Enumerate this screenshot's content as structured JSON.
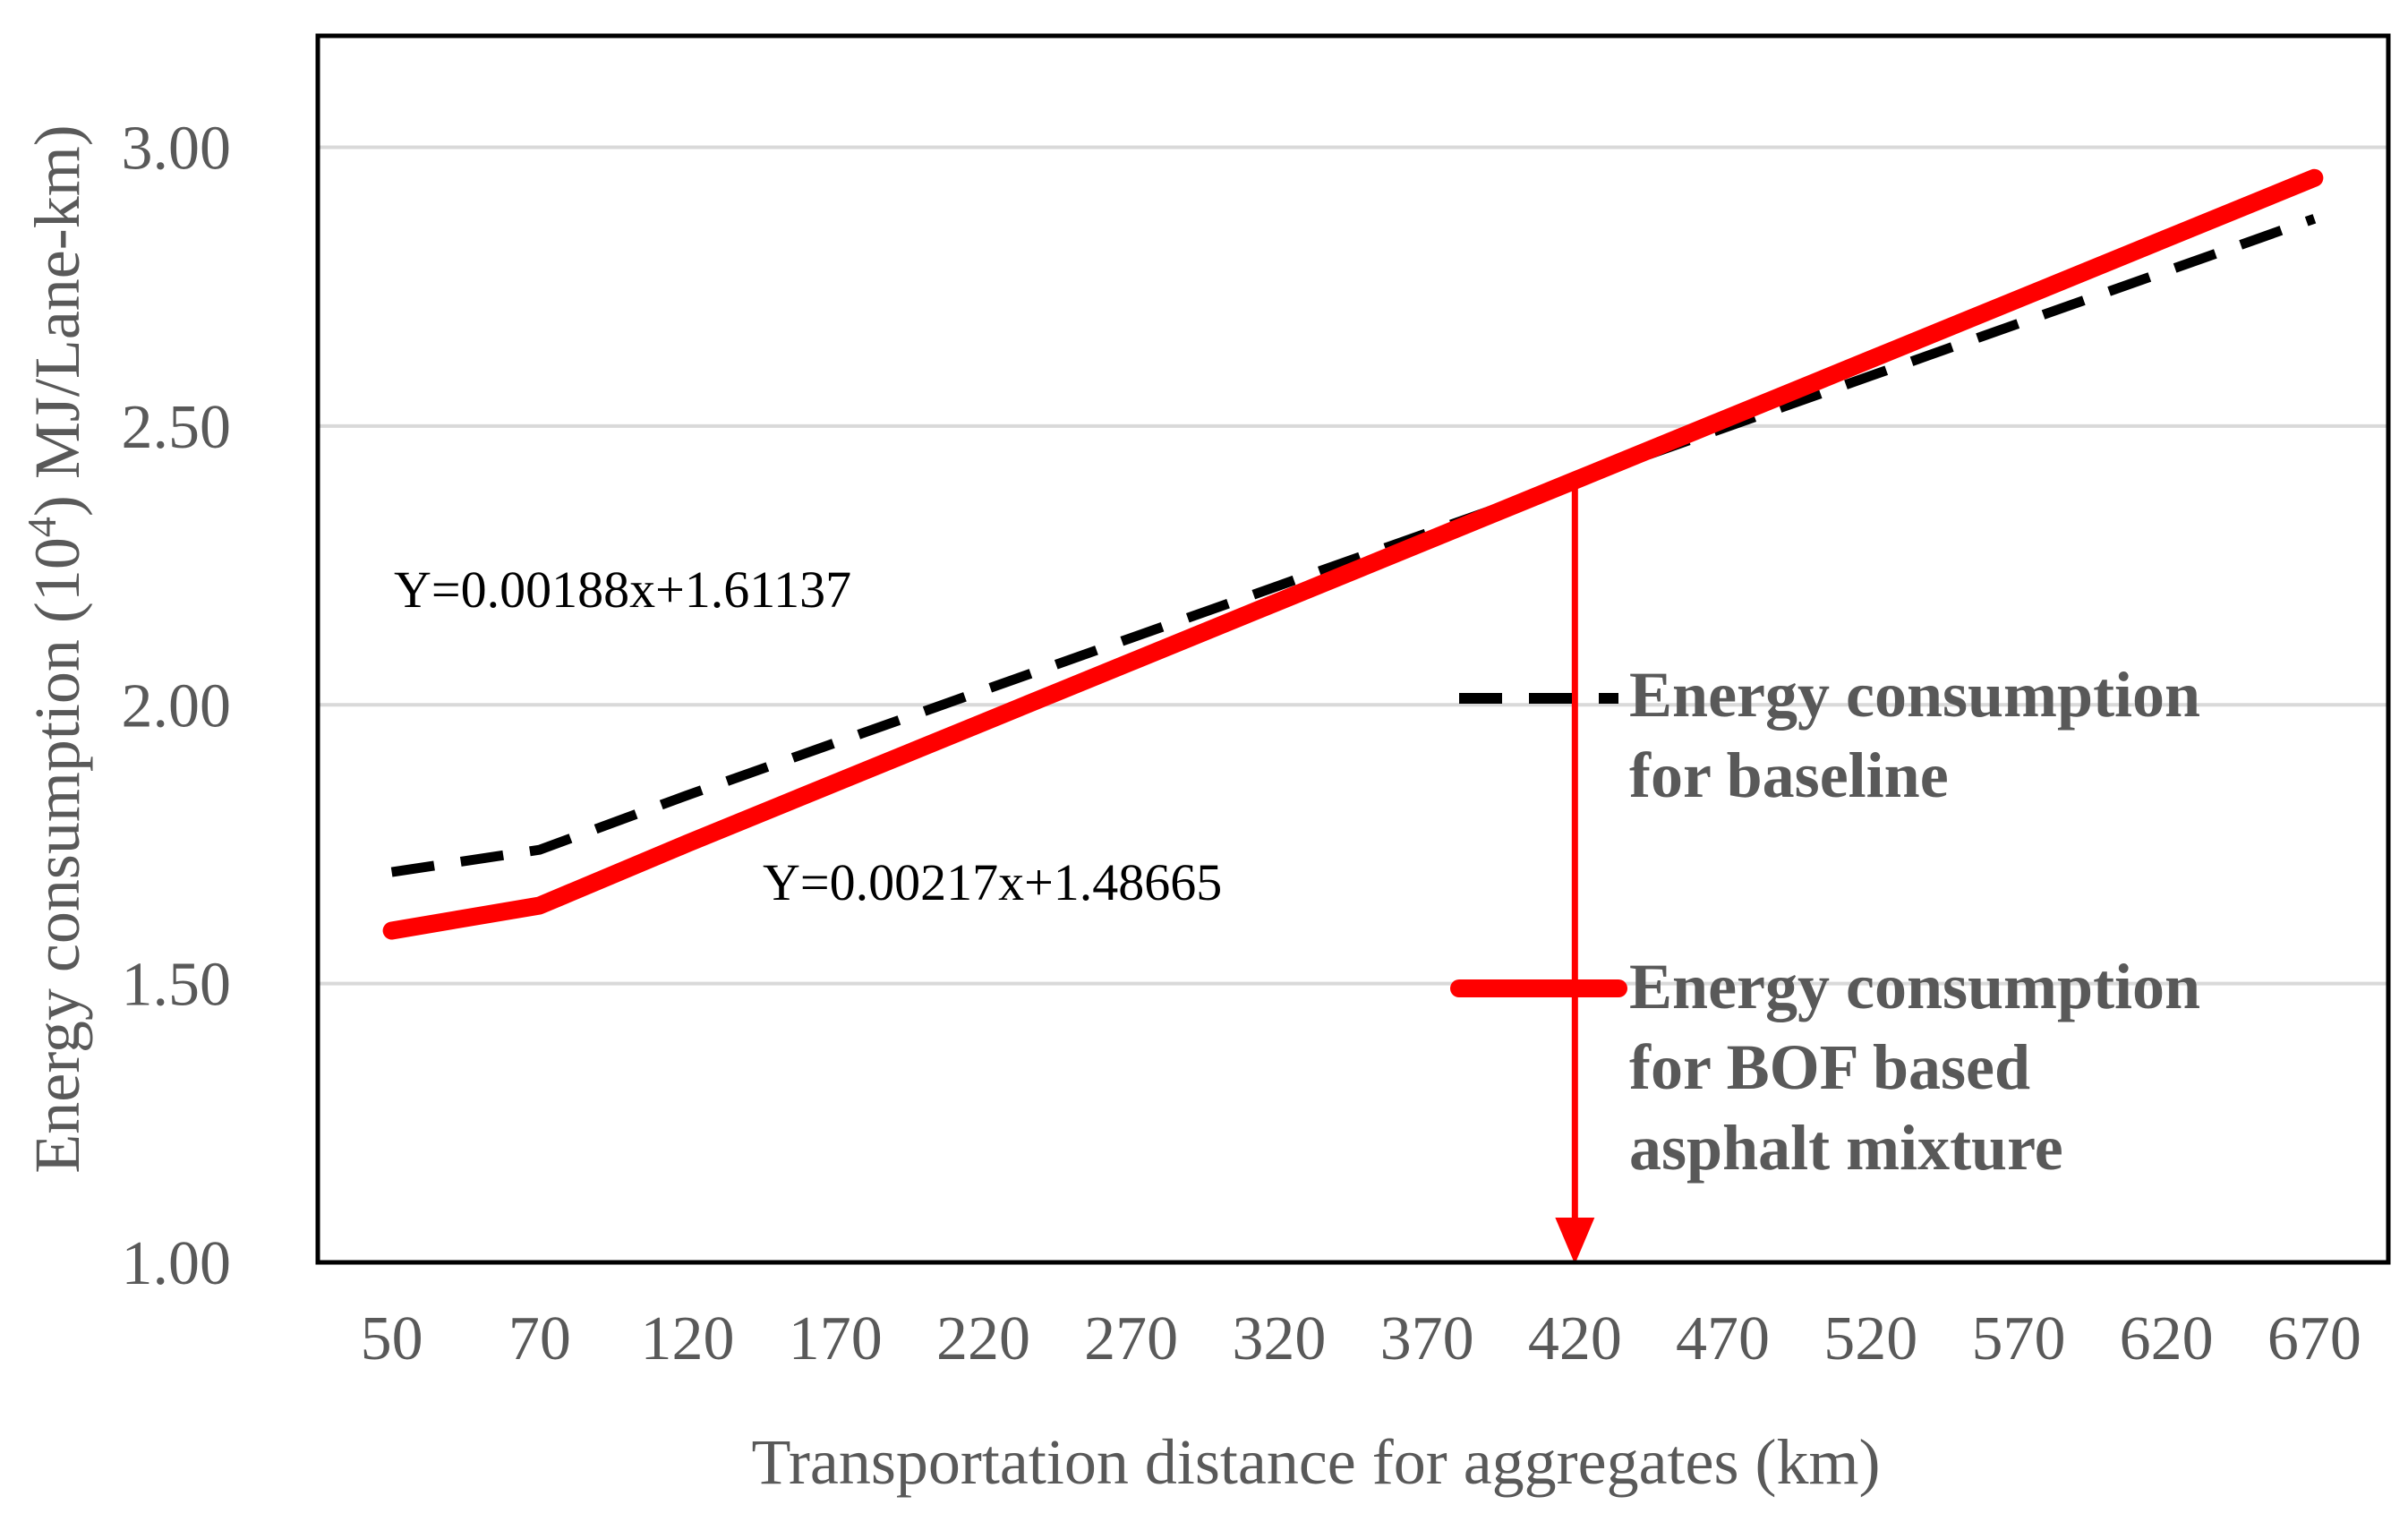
{
  "chart_data": {
    "type": "line",
    "categories": [
      "50",
      "70",
      "120",
      "170",
      "220",
      "270",
      "320",
      "370",
      "420",
      "470",
      "520",
      "570",
      "620",
      "670"
    ],
    "series": [
      {
        "name": "Energy consumption for baseline",
        "legend_lines": [
          "Energy consumption",
          "for baseline"
        ],
        "style": "dashed",
        "color": "#000000",
        "values": [
          1.7,
          1.74,
          1.838,
          1.932,
          2.026,
          2.12,
          2.214,
          2.308,
          2.402,
          2.496,
          2.59,
          2.684,
          2.778,
          2.872
        ]
      },
      {
        "name": "Energy consumption for BOF based asphalt mixture",
        "legend_lines": [
          "Energy consumption",
          "for BOF based",
          "asphalt mixture"
        ],
        "style": "solid",
        "color": "#ff0000",
        "values": [
          1.595,
          1.64,
          1.7516,
          1.8601,
          1.9686,
          2.0771,
          2.1856,
          2.2941,
          2.4026,
          2.5111,
          2.6196,
          2.7281,
          2.8366,
          2.9451
        ]
      }
    ],
    "equations": [
      {
        "text": "Y=0.00188x+1.61137",
        "series": "baseline"
      },
      {
        "text": "Y=0.00217x+1.48665",
        "series": "BOF"
      }
    ],
    "annotation": {
      "type": "arrow",
      "category": "420",
      "color": "#ff0000"
    },
    "xlabel": "Transportation distance for aggregates (km)",
    "ylabel": {
      "prefix": "Energy consumption (10",
      "sup": "4",
      "suffix": ") MJ/Lane-km)"
    },
    "ylim": [
      1.0,
      3.2
    ],
    "yticks": [
      "1.00",
      "1.50",
      "2.00",
      "2.50",
      "3.00"
    ],
    "grid": true,
    "legend_position": "right-middle"
  }
}
